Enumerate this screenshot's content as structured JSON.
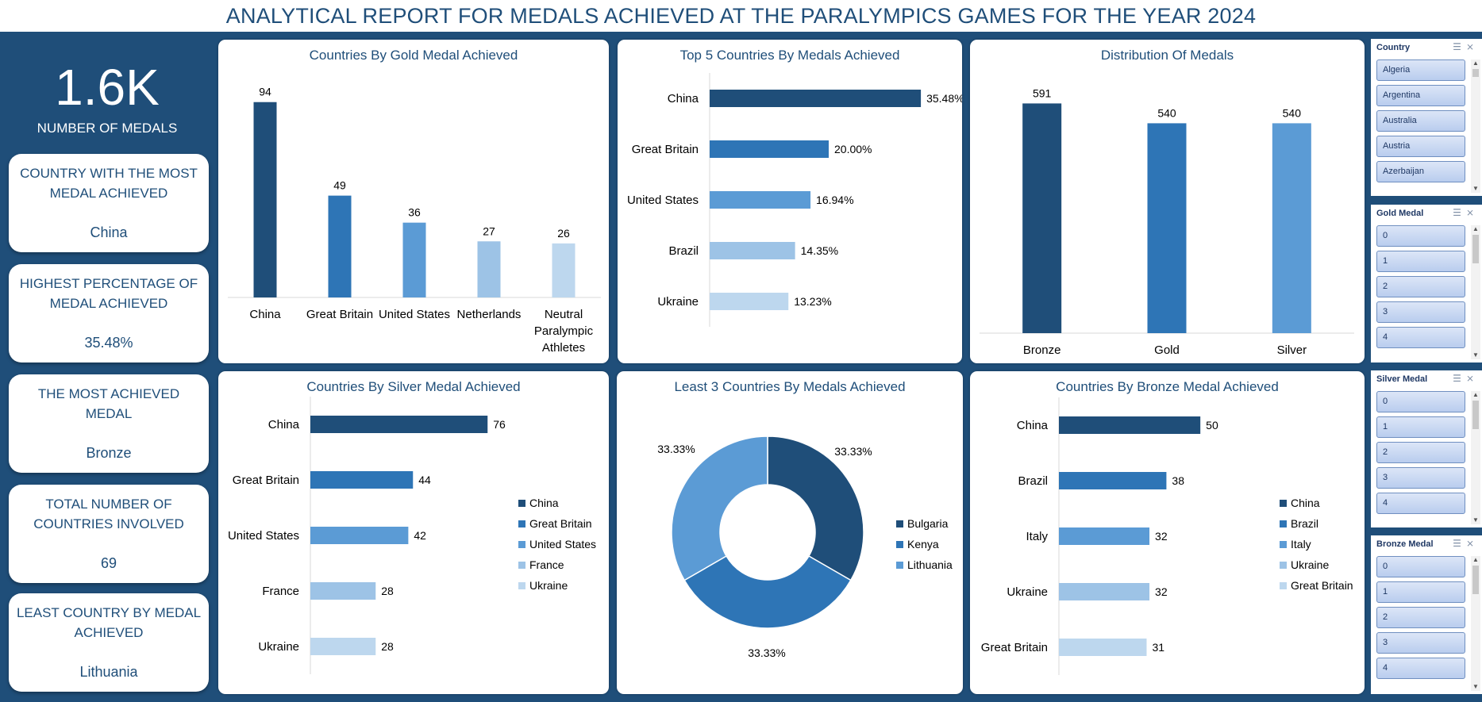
{
  "page_title": "ANALYTICAL REPORT FOR MEDALS ACHIEVED AT THE PARALYMPICS GAMES FOR THE YEAR 2024",
  "colors": {
    "dark": "#1f4e79",
    "medium": "#2e75b6",
    "light": "#5b9bd5",
    "lighter": "#9dc3e6",
    "lightest": "#bdd7ee",
    "title": "#1f4e79"
  },
  "kpi": {
    "total_medals": {
      "value": "1.6K",
      "label": "NUMBER OF MEDALS"
    },
    "cards": [
      {
        "title": "COUNTRY WITH THE MOST MEDAL ACHIEVED",
        "value": "China"
      },
      {
        "title": "HIGHEST PERCENTAGE OF MEDAL ACHIEVED",
        "value": "35.48%"
      },
      {
        "title": "THE MOST ACHIEVED MEDAL",
        "value": "Bronze"
      },
      {
        "title": "TOTAL NUMBER OF COUNTRIES INVOLVED",
        "value": "69"
      },
      {
        "title": "LEAST COUNTRY BY MEDAL ACHIEVED",
        "value": "Lithuania"
      }
    ]
  },
  "chart_data": [
    {
      "id": "gold",
      "type": "bar",
      "title": "Countries By Gold Medal Achieved",
      "categories": [
        "China",
        "Great Britain",
        "United States",
        "Netherlands",
        "Neutral Paralympic Athletes"
      ],
      "values": [
        94,
        49,
        36,
        27,
        26
      ],
      "data_labels": [
        "94",
        "49",
        "36",
        "27",
        "26"
      ],
      "ylim": [
        0,
        100
      ],
      "grid": false
    },
    {
      "id": "top5",
      "type": "bar",
      "orientation": "horizontal",
      "title": "Top 5 Countries By Medals Achieved",
      "categories": [
        "China",
        "Great Britain",
        "United States",
        "Brazil",
        "Ukraine"
      ],
      "values": [
        35.48,
        20.0,
        16.94,
        14.35,
        13.23
      ],
      "data_labels": [
        "35.48%",
        "20.00%",
        "16.94%",
        "14.35%",
        "13.23%"
      ],
      "xlim": [
        0,
        36
      ],
      "grid": false
    },
    {
      "id": "distribution",
      "type": "bar",
      "title": "Distribution Of Medals",
      "categories": [
        "Bronze",
        "Gold",
        "Silver"
      ],
      "values": [
        591,
        540,
        540
      ],
      "data_labels": [
        "591",
        "540",
        "540"
      ],
      "ylim": [
        0,
        600
      ],
      "grid": false
    },
    {
      "id": "silver",
      "type": "bar",
      "orientation": "horizontal",
      "title": "Countries By Silver Medal Achieved",
      "categories": [
        "China",
        "Great Britain",
        "United States",
        "France",
        "Ukraine"
      ],
      "values": [
        76,
        44,
        42,
        28,
        28
      ],
      "data_labels": [
        "76",
        "44",
        "42",
        "28",
        "28"
      ],
      "legend": [
        "China",
        "Great Britain",
        "United States",
        "France",
        "Ukraine"
      ],
      "legend_position": "right",
      "xlim": [
        0,
        80
      ],
      "grid": false
    },
    {
      "id": "least3",
      "type": "pie",
      "variant": "donut",
      "title": "Least 3 Countries By Medals Achieved",
      "categories": [
        "Bulgaria",
        "Kenya",
        "Lithuania"
      ],
      "values": [
        33.33,
        33.33,
        33.33
      ],
      "data_labels": [
        "33.33%",
        "33.33%",
        "33.33%"
      ],
      "legend": [
        "Bulgaria",
        "Kenya",
        "Lithuania"
      ],
      "legend_position": "right"
    },
    {
      "id": "bronze",
      "type": "bar",
      "orientation": "horizontal",
      "title": "Countries By Bronze Medal Achieved",
      "categories": [
        "China",
        "Brazil",
        "Italy",
        "Ukraine",
        "Great Britain"
      ],
      "values": [
        50,
        38,
        32,
        32,
        31
      ],
      "data_labels": [
        "50",
        "38",
        "32",
        "32",
        "31"
      ],
      "legend": [
        "China",
        "Brazil",
        "Italy",
        "Ukraine",
        "Great Britain"
      ],
      "legend_position": "right",
      "xlim": [
        0,
        55
      ],
      "grid": false
    }
  ],
  "slicers": [
    {
      "title": "Country",
      "items": [
        "Algeria",
        "Argentina",
        "Australia",
        "Austria",
        "Azerbaijan"
      ]
    },
    {
      "title": "Gold Medal",
      "items": [
        "0",
        "1",
        "2",
        "3",
        "4"
      ]
    },
    {
      "title": "Silver Medal",
      "items": [
        "0",
        "1",
        "2",
        "3",
        "4"
      ]
    },
    {
      "title": "Bronze Medal",
      "items": [
        "0",
        "1",
        "2",
        "3",
        "4"
      ]
    }
  ],
  "slicer_icons": [
    "multi-select-icon",
    "clear-filter-icon"
  ]
}
